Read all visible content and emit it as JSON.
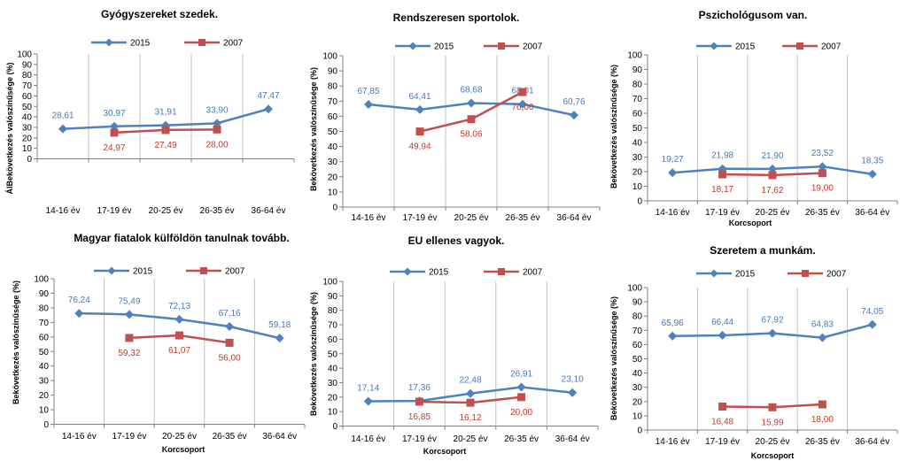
{
  "colors": {
    "s2015": "#4f81bd",
    "s2007": "#c0504d",
    "grid": "#bfbfbf",
    "axis": "#808080"
  },
  "chart_data": [
    {
      "type": "line",
      "title": "Gyógyszereket szedek.",
      "xlabel": "",
      "ylabel": "ÁlBekövetkezés valószínűsége (%)",
      "categories": [
        "14-16 év",
        "17-19 év",
        "20-25 év",
        "26-35 év",
        "36-64 év"
      ],
      "ylim": [
        0,
        100
      ],
      "yticks": [
        0,
        10,
        20,
        30,
        40,
        50,
        60,
        70,
        80,
        90,
        100
      ],
      "legend": "top",
      "series": [
        {
          "name": "2015",
          "values": [
            28.61,
            30.97,
            31.91,
            33.9,
            47.47
          ],
          "labels": [
            "28,61",
            "30,97",
            "31,91",
            "33,90",
            "47,47"
          ]
        },
        {
          "name": "2007",
          "values": [
            null,
            24.97,
            27.49,
            28.0,
            null
          ],
          "labels": [
            "",
            "24,97",
            "27,49",
            "28,00",
            ""
          ]
        }
      ]
    },
    {
      "type": "line",
      "title": "Rendszeresen sportolok.",
      "xlabel": "",
      "ylabel": "Bekövetkezés valószínűsége (%)",
      "categories": [
        "14-16 év",
        "17-19 év",
        "20-25 év",
        "26-35 év",
        "36-64 év"
      ],
      "ylim": [
        0,
        100
      ],
      "yticks": [
        0,
        10,
        20,
        30,
        40,
        50,
        60,
        70,
        80,
        90,
        100
      ],
      "legend": "top",
      "series": [
        {
          "name": "2015",
          "values": [
            67.85,
            64.41,
            68.68,
            68.01,
            60.76
          ],
          "labels": [
            "67,85",
            "64,41",
            "68,68",
            "68,01",
            "60,76"
          ]
        },
        {
          "name": "2007",
          "values": [
            null,
            49.94,
            58.06,
            76.0,
            null
          ],
          "labels": [
            "",
            "49,94",
            "58,06",
            "76,00",
            ""
          ]
        }
      ]
    },
    {
      "type": "line",
      "title": "Pszichológusom van.",
      "xlabel": "Korcsoport",
      "ylabel": "Bekövetkezés valószínűsége (%)",
      "categories": [
        "14-16 év",
        "17-19 év",
        "20-25 év",
        "26-35 év",
        "36-64 év"
      ],
      "ylim": [
        0,
        100
      ],
      "yticks": [
        0,
        10,
        20,
        30,
        40,
        50,
        60,
        70,
        80,
        90,
        100
      ],
      "legend": "top",
      "series": [
        {
          "name": "2015",
          "values": [
            19.27,
            21.98,
            21.9,
            23.52,
            18.35
          ],
          "labels": [
            "19,27",
            "21,98",
            "21,90",
            "23,52",
            "18,35"
          ]
        },
        {
          "name": "2007",
          "values": [
            null,
            18.17,
            17.62,
            19.0,
            null
          ],
          "labels": [
            "",
            "18,17",
            "17,62",
            "19,00",
            ""
          ]
        }
      ]
    },
    {
      "type": "line",
      "title": "Magyar fiatalok külföldön tanulnak tovább.",
      "xlabel": "Korcsoport",
      "ylabel": "Bekövetkezés valószínűsége (%)",
      "categories": [
        "14-16 év",
        "17-19 év",
        "20-25 év",
        "26-35 év",
        "36-64 év"
      ],
      "ylim": [
        0,
        100
      ],
      "yticks": [
        0,
        10,
        20,
        30,
        40,
        50,
        60,
        70,
        80,
        90,
        100
      ],
      "legend": "top",
      "series": [
        {
          "name": "2015",
          "values": [
            76.24,
            75.49,
            72.13,
            67.16,
            59.18
          ],
          "labels": [
            "76,24",
            "75,49",
            "72,13",
            "67,16",
            "59,18"
          ]
        },
        {
          "name": "2007",
          "values": [
            null,
            59.32,
            61.07,
            56.0,
            null
          ],
          "labels": [
            "",
            "59,32",
            "61,07",
            "56,00",
            ""
          ]
        }
      ]
    },
    {
      "type": "line",
      "title": "EU ellenes vagyok.",
      "xlabel": "Korcsoport",
      "ylabel": "Bekövetkezés valószínűsége (%)",
      "categories": [
        "14-16 év",
        "17-19 év",
        "20-25 év",
        "26-35 év",
        "36-64 év"
      ],
      "ylim": [
        0,
        100
      ],
      "yticks": [
        0,
        10,
        20,
        30,
        40,
        50,
        60,
        70,
        80,
        90,
        100
      ],
      "legend": "top",
      "series": [
        {
          "name": "2015",
          "values": [
            17.14,
            17.36,
            22.48,
            26.91,
            23.1
          ],
          "labels": [
            "17,14",
            "17,36",
            "22,48",
            "26,91",
            "23,10"
          ]
        },
        {
          "name": "2007",
          "values": [
            null,
            16.85,
            16.12,
            20.0,
            null
          ],
          "labels": [
            "",
            "16,85",
            "16,12",
            "20,00",
            ""
          ]
        }
      ]
    },
    {
      "type": "line",
      "title": "Szeretem a munkám.",
      "xlabel": "Korcsoport",
      "ylabel": "Bekövetkezés valószínűsége (%)",
      "categories": [
        "14-16 év",
        "17-19 év",
        "20-25 év",
        "26-35 év",
        "36-64 év"
      ],
      "ylim": [
        0,
        100
      ],
      "yticks": [
        0,
        10,
        20,
        30,
        40,
        50,
        60,
        70,
        80,
        90,
        100
      ],
      "legend": "top",
      "series": [
        {
          "name": "2015",
          "values": [
            65.96,
            66.44,
            67.92,
            64.83,
            74.05
          ],
          "labels": [
            "65,96",
            "66,44",
            "67,92",
            "64,83",
            "74,05"
          ]
        },
        {
          "name": "2007",
          "values": [
            null,
            16.48,
            15.99,
            18.0,
            null
          ],
          "labels": [
            "",
            "16,48",
            "15,99",
            "18,00",
            ""
          ]
        }
      ]
    }
  ]
}
